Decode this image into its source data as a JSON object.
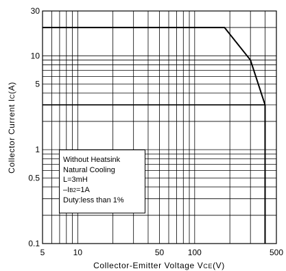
{
  "chart_data": {
    "type": "line",
    "xscale": "log",
    "yscale": "log",
    "xlim": [
      5,
      500
    ],
    "ylim": [
      0.1,
      30
    ],
    "grid": true,
    "x_tick_labels": [
      "5",
      "10",
      "50",
      "100",
      "500"
    ],
    "x_tick_values": [
      5,
      10,
      50,
      100,
      500
    ],
    "y_tick_labels": [
      "0.1",
      "0.5",
      "1",
      "5",
      "10",
      "30"
    ],
    "y_tick_values": [
      0.1,
      0.5,
      1,
      5,
      10,
      30
    ],
    "xlabel": {
      "main": "Collector-Emitter Voltage V",
      "sub": "CE",
      "tail": "(V)"
    },
    "ylabel": {
      "main": "Collector Current I",
      "sub": "C",
      "tail": "(A)"
    },
    "series": [
      {
        "x": [
          5,
          180,
          300,
          400,
          400
        ],
        "y": [
          20,
          20,
          9,
          3,
          0.1
        ]
      }
    ],
    "hlines": [
      3
    ],
    "annotation": {
      "lines": [
        "Without Heatsink",
        "Natural Cooling",
        "L=3mH",
        "–I",
        "Duty:less than 1%"
      ],
      "line4_sub": "B2",
      "line4_tail": "=1A"
    }
  }
}
